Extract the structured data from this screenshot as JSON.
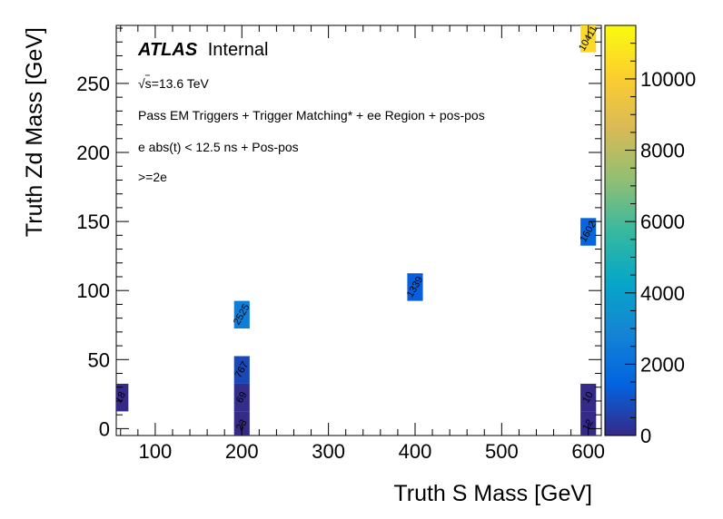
{
  "chart_data": {
    "type": "heatmap",
    "title": "",
    "xlabel": "Truth S Mass [GeV]",
    "ylabel": "Truth Zd Mass [GeV]",
    "xlim": [
      55,
      615
    ],
    "ylim": [
      -5,
      292
    ],
    "x_ticks": [
      "100",
      "200",
      "300",
      "400",
      "500",
      "600"
    ],
    "x_tick_values": [
      100,
      200,
      300,
      400,
      500,
      600
    ],
    "y_ticks": [
      "0",
      "50",
      "100",
      "150",
      "200",
      "250"
    ],
    "y_tick_values": [
      0,
      50,
      100,
      150,
      200,
      250
    ],
    "z_range": [
      0,
      11500
    ],
    "colorbar_ticks": [
      "0",
      "2000",
      "4000",
      "6000",
      "8000",
      "10000"
    ],
    "colorbar_tick_values": [
      0,
      2000,
      4000,
      6000,
      8000,
      10000
    ],
    "bin_width": 20,
    "bin_height": 20,
    "cells": [
      {
        "x": 60,
        "y": 22.5,
        "value": 18,
        "label": "18"
      },
      {
        "x": 200,
        "y": 2.5,
        "value": 23,
        "label": "23"
      },
      {
        "x": 200,
        "y": 22.5,
        "value": 69,
        "label": "69"
      },
      {
        "x": 200,
        "y": 42.5,
        "value": 767,
        "label": "767"
      },
      {
        "x": 200,
        "y": 82.5,
        "value": 2525,
        "label": "2525"
      },
      {
        "x": 400,
        "y": 102.5,
        "value": 1339,
        "label": "1339"
      },
      {
        "x": 600,
        "y": 2.5,
        "value": 12,
        "label": "12"
      },
      {
        "x": 600,
        "y": 22.5,
        "value": 10,
        "label": "10"
      },
      {
        "x": 600,
        "y": 142.5,
        "value": 1602,
        "label": "1602"
      },
      {
        "x": 600,
        "y": 282.5,
        "value": 10411,
        "label": "10411"
      }
    ],
    "annotations": {
      "atlas": "ATLAS",
      "internal": "Internal",
      "energy_root": "√s",
      "energy_value": "=13.6 TeV",
      "selection": "Pass EM Triggers + Trigger Matching* + ee Region + pos-pos",
      "timing": "e abs(t) < 12.5 ns + Pos-pos",
      "multiplicity": ">=2e"
    }
  }
}
